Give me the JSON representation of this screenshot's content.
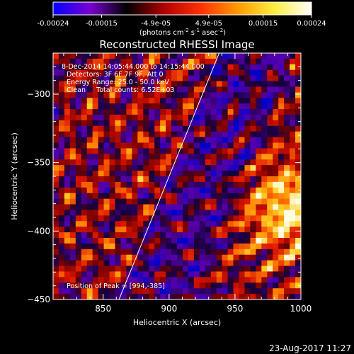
{
  "colorbar": {
    "colors": [
      "#0000ff",
      "#7a00d0",
      "#000000",
      "#b00000",
      "#ff3000",
      "#ff9a00",
      "#ffee40",
      "#ffffff"
    ],
    "ticks": [
      "-0.00024",
      "-0.00015",
      "-4.9e-05",
      "4.9e-05",
      "0.00015",
      "0.00024"
    ],
    "unit_main": "(photons cm",
    "unit_exp1": "-2",
    "unit_mid": " s",
    "unit_exp2": "-1",
    "unit_end": " asec",
    "unit_exp3": "-2",
    "unit_close": ")"
  },
  "chart_data": {
    "type": "heatmap",
    "title": "Reconstructed RHESSI Image",
    "xlabel": "Heliocentric X (arcsec)",
    "ylabel": "Heliocentric Y (arcsec)",
    "xlim": [
      812,
      1000
    ],
    "ylim": [
      -450,
      -270
    ],
    "xticks": [
      850,
      900,
      950,
      1000
    ],
    "yticks": [
      -300,
      -350,
      -400,
      -450
    ],
    "color_range": [
      -0.00024,
      0.00024
    ],
    "annotations": [
      "8-Dec-2014 14:05:44.000 to 14:15:44.000",
      "Detectors: 3F 6F 7F 9F, Att 0",
      "Energy Range: 25.0 - 50.0 keV",
      "Clean     Total counts: 6.52E+03"
    ],
    "peak_label": "Position of Peak = [994,-385]",
    "peak": [
      994,
      -385
    ],
    "limb_line": [
      [
        862,
        -450
      ],
      [
        938,
        -270
      ]
    ]
  },
  "footer_timestamp": "23-Aug-2017 11:27"
}
